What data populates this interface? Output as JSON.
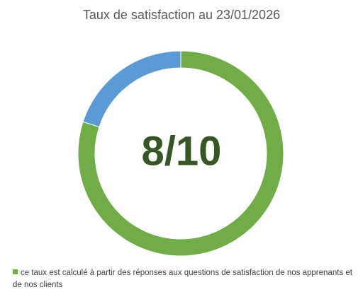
{
  "chart_data": {
    "type": "donut",
    "title": "Taux de satisfaction au 23/01/2026",
    "categories": [
      "ce taux est calculé à partir des réponses aux questions de satisfaction de nos apprenants et de nos clients",
      null
    ],
    "values": [
      8,
      2
    ],
    "colors": [
      "#70ad47",
      "#5b9bd5"
    ],
    "center_label": "8/10",
    "legend": "bottom"
  }
}
